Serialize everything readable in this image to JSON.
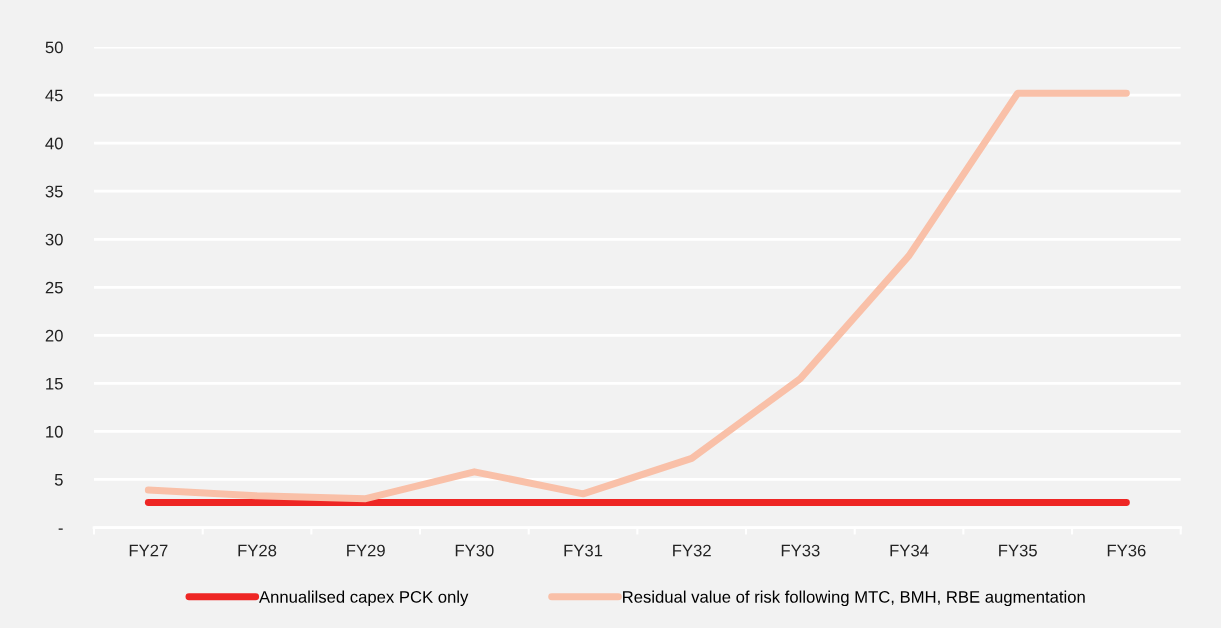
{
  "chart_data": {
    "type": "line",
    "categories": [
      "FY27",
      "FY28",
      "FY29",
      "FY30",
      "FY31",
      "FY32",
      "FY33",
      "FY34",
      "FY35",
      "FY36"
    ],
    "series": [
      {
        "name": "Annualilsed capex PCK only",
        "color": "#ee2624",
        "values": [
          2.6,
          2.6,
          2.6,
          2.6,
          2.6,
          2.6,
          2.6,
          2.6,
          2.6,
          2.6
        ]
      },
      {
        "name": "Residual value of risk following MTC, BMH, RBE augmentation",
        "color": "#f9c0a8",
        "values": [
          3.9,
          3.3,
          3.0,
          5.8,
          3.5,
          7.2,
          15.5,
          28.3,
          45.2,
          45.2
        ]
      }
    ],
    "ylim": [
      0,
      50
    ],
    "yticks": [
      {
        "value": 0,
        "label": "-"
      },
      5,
      10,
      15,
      20,
      25,
      30,
      35,
      40,
      45,
      50
    ],
    "grid": "y",
    "legend": "bottom",
    "marker": "none",
    "line_style": "solid"
  }
}
